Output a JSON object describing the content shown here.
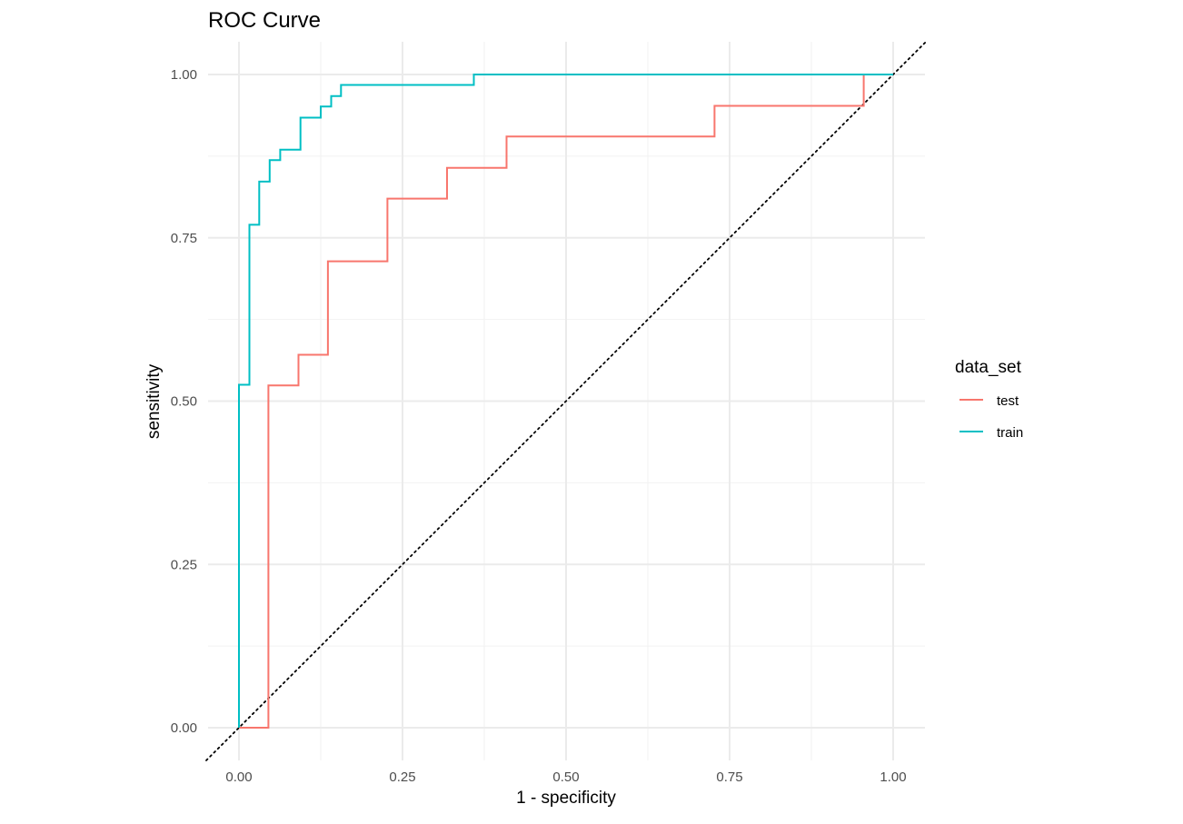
{
  "chart_data": {
    "type": "line",
    "title": "ROC Curve",
    "xlabel": "1 - specificity",
    "ylabel": "sensitivity",
    "xlim": [
      -0.05,
      1.05
    ],
    "ylim": [
      -0.05,
      1.05
    ],
    "x_ticks": [
      0,
      0.25,
      0.5,
      0.75,
      1
    ],
    "x_tick_labels": [
      "0.00",
      "0.25",
      "0.50",
      "0.75",
      "1.00"
    ],
    "y_ticks": [
      0,
      0.25,
      0.5,
      0.75,
      1
    ],
    "y_tick_labels": [
      "0.00",
      "0.25",
      "0.50",
      "0.75",
      "1.00"
    ],
    "grid": true,
    "legend": {
      "title": "data_set",
      "position": "right"
    },
    "reference_line": {
      "from": [
        0,
        0
      ],
      "to": [
        1,
        1
      ],
      "style": "dotted",
      "color": "#000000"
    },
    "series": [
      {
        "name": "test",
        "color": "#F8766D",
        "step": true,
        "points": [
          [
            0,
            0
          ],
          [
            0.045,
            0
          ],
          [
            0.045,
            0.524
          ],
          [
            0.091,
            0.524
          ],
          [
            0.091,
            0.571
          ],
          [
            0.136,
            0.571
          ],
          [
            0.136,
            0.714
          ],
          [
            0.227,
            0.714
          ],
          [
            0.227,
            0.81
          ],
          [
            0.318,
            0.81
          ],
          [
            0.318,
            0.857
          ],
          [
            0.409,
            0.857
          ],
          [
            0.409,
            0.905
          ],
          [
            0.727,
            0.905
          ],
          [
            0.727,
            0.952
          ],
          [
            0.955,
            0.952
          ],
          [
            0.955,
            1.0
          ],
          [
            1.0,
            1.0
          ]
        ]
      },
      {
        "name": "train",
        "color": "#00BFC4",
        "step": true,
        "points": [
          [
            0,
            0
          ],
          [
            0,
            0.525
          ],
          [
            0.016,
            0.525
          ],
          [
            0.016,
            0.77
          ],
          [
            0.031,
            0.77
          ],
          [
            0.031,
            0.836
          ],
          [
            0.047,
            0.836
          ],
          [
            0.047,
            0.869
          ],
          [
            0.063,
            0.869
          ],
          [
            0.063,
            0.885
          ],
          [
            0.094,
            0.885
          ],
          [
            0.094,
            0.934
          ],
          [
            0.125,
            0.934
          ],
          [
            0.125,
            0.951
          ],
          [
            0.141,
            0.951
          ],
          [
            0.141,
            0.967
          ],
          [
            0.156,
            0.967
          ],
          [
            0.156,
            0.984
          ],
          [
            0.359,
            0.984
          ],
          [
            0.359,
            1.0
          ],
          [
            1.0,
            1.0
          ]
        ]
      }
    ]
  }
}
